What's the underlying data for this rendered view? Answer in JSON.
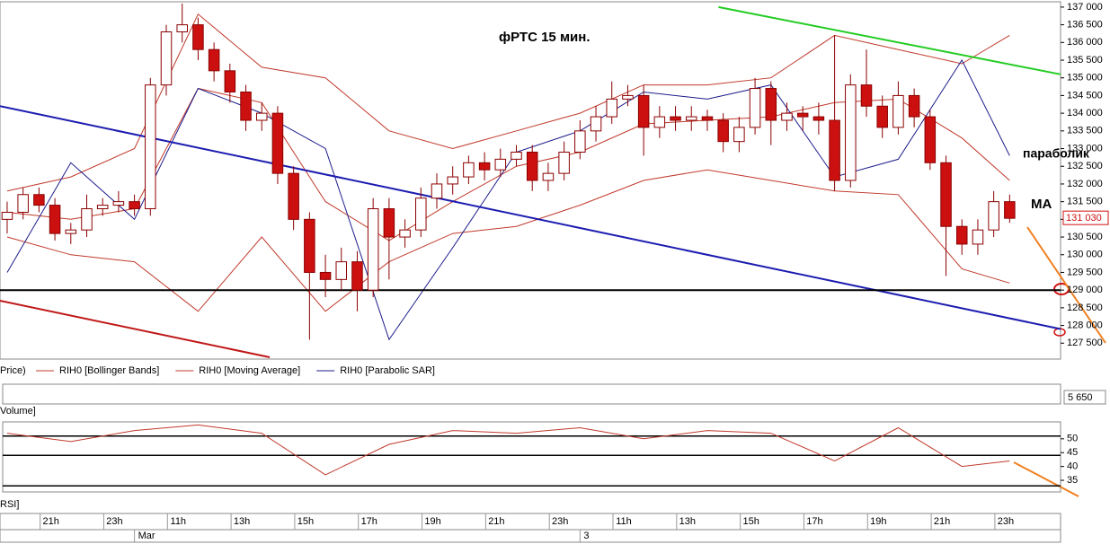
{
  "chart_data": [
    {
      "type": "candlestick",
      "title": "фРТС   15 мин.",
      "annotations": [
        "параболик",
        "MA"
      ],
      "legend_lead": "Price)",
      "open": [
        131000,
        131200,
        131700,
        131400,
        130600,
        130700,
        131300,
        131400,
        131500,
        131300,
        134800,
        136300,
        136500,
        135800,
        135200,
        134600,
        133800,
        134000,
        132300,
        131000,
        129500,
        129300,
        129800,
        129000,
        131300,
        130500,
        130700,
        131600,
        132000,
        132200,
        132600,
        132400,
        132700,
        132900,
        132100,
        132300,
        132900,
        133500,
        133900,
        134400,
        134500,
        133600,
        133900,
        133800,
        133900,
        133800,
        133200,
        133600,
        134700,
        133800,
        134000,
        133900,
        133800,
        132100,
        134800,
        134200,
        133600,
        134500,
        133900,
        132600,
        130800,
        130300,
        130700,
        131500
      ],
      "high": [
        131500,
        131900,
        131900,
        131600,
        130900,
        131700,
        131600,
        131800,
        131700,
        135000,
        136500,
        137100,
        136700,
        136000,
        135400,
        134800,
        134300,
        134200,
        132500,
        131200,
        130000,
        130200,
        130100,
        131600,
        131600,
        131000,
        131900,
        132300,
        132500,
        132800,
        132900,
        133000,
        133100,
        133100,
        132600,
        133200,
        133800,
        134200,
        134900,
        134800,
        134800,
        134200,
        134200,
        134200,
        134100,
        134000,
        133900,
        135000,
        134900,
        134300,
        134200,
        134300,
        136200,
        135100,
        135800,
        134500,
        134900,
        134700,
        134100,
        132800,
        131000,
        131000,
        131800,
        131700
      ],
      "low": [
        130600,
        131000,
        131200,
        130400,
        130300,
        130500,
        131100,
        131200,
        131100,
        131100,
        134500,
        136000,
        135500,
        134900,
        134300,
        133500,
        133500,
        132000,
        130700,
        127600,
        128800,
        129000,
        128400,
        128800,
        129300,
        130200,
        130500,
        131300,
        131700,
        132000,
        132100,
        132200,
        132500,
        131800,
        131800,
        132100,
        132700,
        133200,
        133700,
        134200,
        132800,
        133300,
        133500,
        133500,
        133500,
        132900,
        132900,
        133400,
        133100,
        133500,
        133500,
        133400,
        131800,
        131900,
        133900,
        133300,
        133400,
        133600,
        132400,
        129400,
        130000,
        130000,
        130500,
        130900
      ],
      "close": [
        131200,
        131700,
        131400,
        130600,
        130700,
        131300,
        131400,
        131500,
        131300,
        134800,
        136300,
        136500,
        135800,
        135200,
        134600,
        133800,
        134000,
        132300,
        131000,
        129500,
        129300,
        129800,
        129000,
        131300,
        130500,
        130700,
        131600,
        132000,
        132200,
        132600,
        132400,
        132700,
        132900,
        132100,
        132300,
        132900,
        133500,
        133900,
        134400,
        134500,
        133600,
        133900,
        133800,
        133900,
        133800,
        133200,
        133600,
        134700,
        133800,
        134000,
        133900,
        133800,
        132100,
        134800,
        134200,
        133600,
        134500,
        133900,
        132600,
        130800,
        130300,
        130700,
        131500,
        131030
      ],
      "bull_color": "#ffffff",
      "bear_color": "#cc1010",
      "candle_edge": "#8b0000",
      "last_label": "131 030",
      "bands": {
        "name": "RIH0 [Bollinger Bands]",
        "color": "#c0392b",
        "x": [
          0,
          4,
          8,
          12,
          16,
          20,
          24,
          28,
          32,
          36,
          40,
          44,
          48,
          52,
          56,
          60,
          63
        ],
        "upper": [
          131800,
          132200,
          133000,
          136800,
          135300,
          135000,
          133500,
          133000,
          133500,
          134000,
          134800,
          134800,
          135000,
          136200,
          135800,
          135400,
          136200
        ],
        "lower": [
          130500,
          130000,
          129800,
          128400,
          130500,
          128400,
          129800,
          130600,
          130800,
          131400,
          132100,
          132400,
          132100,
          131800,
          131700,
          129600,
          129200
        ]
      },
      "overlays": [
        {
          "name": "RIH0 [Moving Average]",
          "color": "#c0392b",
          "x": [
            0,
            4,
            8,
            12,
            16,
            20,
            24,
            28,
            32,
            36,
            40,
            44,
            48,
            52,
            56,
            60,
            63
          ],
          "values": [
            131200,
            131000,
            131300,
            134700,
            134300,
            131500,
            130400,
            131500,
            132500,
            132900,
            133700,
            133800,
            133900,
            134300,
            134400,
            133300,
            132100
          ]
        },
        {
          "name": "RIH0 [Parabolic SAR]",
          "color": "#1c1c8c",
          "x": [
            0,
            4,
            8,
            12,
            16,
            20,
            24,
            28,
            32,
            36,
            40,
            44,
            48,
            52,
            56,
            60,
            63
          ],
          "values": [
            129500,
            132600,
            131000,
            134700,
            134000,
            133000,
            127600,
            130200,
            132900,
            133500,
            134600,
            134400,
            134800,
            132200,
            132700,
            135500,
            132800
          ]
        }
      ],
      "trend_lines": [
        {
          "color": "#1c1cb0",
          "x": [
            -0.45,
            66.2
          ],
          "values": [
            134200,
            127900
          ]
        },
        {
          "color": "#22cc22",
          "x": [
            44.7,
            66.2
          ],
          "values": [
            137000,
            135100
          ]
        },
        {
          "color": "#c01818",
          "x": [
            -0.45,
            16.5
          ],
          "values": [
            128700,
            127100
          ]
        },
        {
          "color": "#000000",
          "x": [
            -0.45,
            66.2
          ],
          "values": [
            129000,
            129000
          ]
        }
      ],
      "xlim": [
        -0.45,
        66.2
      ],
      "ylim": [
        127050,
        137150
      ],
      "yticks": [
        {
          "value": 127500,
          "label": "127 500"
        },
        {
          "value": 128000,
          "label": "128 000"
        },
        {
          "value": 128500,
          "label": "128 500"
        },
        {
          "value": 129000,
          "label": "129 000"
        },
        {
          "value": 129500,
          "label": "129 500"
        },
        {
          "value": 130000,
          "label": "130 000"
        },
        {
          "value": 130500,
          "label": "130 500"
        },
        {
          "value": 131000,
          "label": "131 000"
        },
        {
          "value": 131500,
          "label": "131 500"
        },
        {
          "value": 132000,
          "label": "132 000"
        },
        {
          "value": 132500,
          "label": "132 500"
        },
        {
          "value": 133000,
          "label": "133 000"
        },
        {
          "value": 133500,
          "label": "133 500"
        },
        {
          "value": 134000,
          "label": "134 000"
        },
        {
          "value": 134500,
          "label": "134 500"
        },
        {
          "value": 135000,
          "label": "135 000"
        },
        {
          "value": 135500,
          "label": "135 500"
        },
        {
          "value": 136000,
          "label": "136 000"
        },
        {
          "value": 136500,
          "label": "136 500"
        },
        {
          "value": 137000,
          "label": "137 000"
        }
      ],
      "xticks": [
        {
          "value": 2.75,
          "label": "21h"
        },
        {
          "value": 6.75,
          "label": "23h"
        },
        {
          "value": 10.75,
          "label": "11h"
        },
        {
          "value": 14.75,
          "label": "13h"
        },
        {
          "value": 18.75,
          "label": "15h"
        },
        {
          "value": 22.75,
          "label": "17h"
        },
        {
          "value": 26.75,
          "label": "19h"
        },
        {
          "value": 30.75,
          "label": "21h"
        },
        {
          "value": 34.75,
          "label": "23h"
        },
        {
          "value": 38.75,
          "label": "11h"
        },
        {
          "value": 42.75,
          "label": "13h"
        },
        {
          "value": 46.75,
          "label": "15h"
        },
        {
          "value": 50.75,
          "label": "17h"
        },
        {
          "value": 54.75,
          "label": "19h"
        },
        {
          "value": 58.75,
          "label": "21h"
        },
        {
          "value": 62.75,
          "label": "23h"
        }
      ],
      "date_ticks": [
        {
          "value": 8,
          "label": "Mar"
        },
        {
          "value": 36,
          "label": "3"
        }
      ],
      "grid": false
    },
    {
      "type": "line",
      "panel_label": "RSI]",
      "color": "#c0392b",
      "x": [
        0,
        4,
        8,
        12,
        16,
        20,
        24,
        28,
        32,
        36,
        40,
        44,
        48,
        52,
        56,
        60,
        63
      ],
      "values": [
        52,
        49,
        53,
        55,
        52,
        37,
        48,
        53,
        52,
        54,
        50,
        53,
        52,
        42,
        54,
        40,
        42
      ],
      "levels": [
        51,
        44,
        33
      ],
      "ylim": [
        30.8,
        56.1
      ],
      "yticks": [
        35,
        40,
        45,
        50
      ],
      "grid": false
    }
  ],
  "volume_panel": {
    "label": "Volume]",
    "last_value": "5 650"
  }
}
